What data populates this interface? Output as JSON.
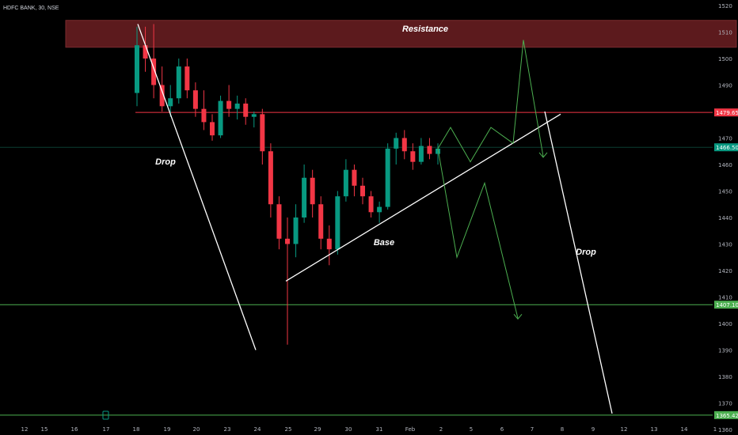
{
  "header": {
    "symbol_line": "HDFC BANK, 30, NSE"
  },
  "chart_data": {
    "type": "candlestick",
    "title": "HDFC BANK, 30, NSE",
    "ylim": [
      1360,
      1520
    ],
    "y_ticks": [
      1520,
      1510,
      1500,
      1490,
      1470,
      1460,
      1450,
      1440,
      1430,
      1420,
      1410,
      1400,
      1390,
      1380,
      1370,
      1360
    ],
    "x_ticks": [
      "12",
      "15",
      "16",
      "17",
      "18",
      "19",
      "20",
      "23",
      "24",
      "25",
      "29",
      "30",
      "31",
      "Feb",
      "2",
      "5",
      "6",
      "7",
      "8",
      "9",
      "12",
      "13",
      "14",
      "1"
    ],
    "grid": false,
    "price_tags": [
      {
        "label": "1479.65",
        "value": 1479.65,
        "color": "#f23645"
      },
      {
        "label": "1466.50",
        "value": 1466.5,
        "color": "#089981"
      },
      {
        "label": "1407.10",
        "value": 1407.1,
        "color": "#4caf50"
      },
      {
        "label": "1365.42",
        "value": 1365.42,
        "color": "#4caf50"
      }
    ],
    "horizontal_levels": [
      {
        "value": 1479.65,
        "color": "#f23645"
      },
      {
        "value": 1407.1,
        "color": "#4caf50"
      },
      {
        "value": 1365.42,
        "color": "#4caf50"
      }
    ],
    "zone": {
      "label": "Resistance",
      "low": 1505,
      "high": 1515,
      "color": "#5c1a1d"
    },
    "annotations": [
      {
        "text": "Drop"
      },
      {
        "text": "Base"
      },
      {
        "text": "Drop"
      }
    ],
    "candles_approx": [
      [
        1487,
        1512,
        1482,
        1505
      ],
      [
        1505,
        1512,
        1495,
        1500
      ],
      [
        1500,
        1513,
        1485,
        1490
      ],
      [
        1490,
        1497,
        1480,
        1482
      ],
      [
        1482,
        1490,
        1478,
        1485
      ],
      [
        1485,
        1500,
        1483,
        1497
      ],
      [
        1497,
        1500,
        1485,
        1488
      ],
      [
        1488,
        1491,
        1478,
        1481
      ],
      [
        1481,
        1488,
        1473,
        1476
      ],
      [
        1476,
        1479,
        1469,
        1471
      ],
      [
        1471,
        1486,
        1470,
        1484
      ],
      [
        1484,
        1490,
        1478,
        1481
      ],
      [
        1481,
        1486,
        1477,
        1483
      ],
      [
        1483,
        1485,
        1475,
        1478
      ],
      [
        1478,
        1480,
        1474,
        1479
      ],
      [
        1479,
        1481,
        1460,
        1465
      ],
      [
        1465,
        1468,
        1440,
        1445
      ],
      [
        1445,
        1448,
        1428,
        1432
      ],
      [
        1432,
        1440,
        1392,
        1430
      ],
      [
        1430,
        1445,
        1425,
        1440
      ],
      [
        1440,
        1460,
        1438,
        1455
      ],
      [
        1455,
        1458,
        1440,
        1445
      ],
      [
        1445,
        1448,
        1428,
        1432
      ],
      [
        1432,
        1437,
        1422,
        1428
      ],
      [
        1428,
        1450,
        1426,
        1448
      ],
      [
        1448,
        1462,
        1446,
        1458
      ],
      [
        1458,
        1460,
        1448,
        1452
      ],
      [
        1452,
        1455,
        1445,
        1448
      ],
      [
        1448,
        1450,
        1440,
        1442
      ],
      [
        1442,
        1446,
        1438,
        1444
      ],
      [
        1444,
        1468,
        1443,
        1466
      ],
      [
        1466,
        1472,
        1460,
        1470
      ],
      [
        1470,
        1473,
        1462,
        1465
      ],
      [
        1465,
        1468,
        1458,
        1461
      ],
      [
        1461,
        1470,
        1460,
        1467
      ],
      [
        1467,
        1470,
        1462,
        1464
      ],
      [
        1464,
        1468,
        1460,
        1466
      ]
    ],
    "projection_paths": [
      {
        "name": "upper",
        "color": "#4caf50",
        "points": [
          [
            0,
            1466
          ],
          [
            1,
            1474
          ],
          [
            2,
            1461
          ],
          [
            3,
            1474
          ],
          [
            4,
            1468
          ],
          [
            5,
            1507
          ],
          [
            6,
            1463
          ]
        ]
      },
      {
        "name": "lower",
        "color": "#4caf50",
        "points": [
          [
            0,
            1466
          ],
          [
            1,
            1425
          ],
          [
            2,
            1453
          ],
          [
            3,
            1402
          ]
        ]
      }
    ],
    "trend_lines": [
      {
        "name": "drop1",
        "color": "#ffffff"
      },
      {
        "name": "base",
        "color": "#ffffff"
      },
      {
        "name": "drop2",
        "color": "#ffffff"
      }
    ]
  }
}
